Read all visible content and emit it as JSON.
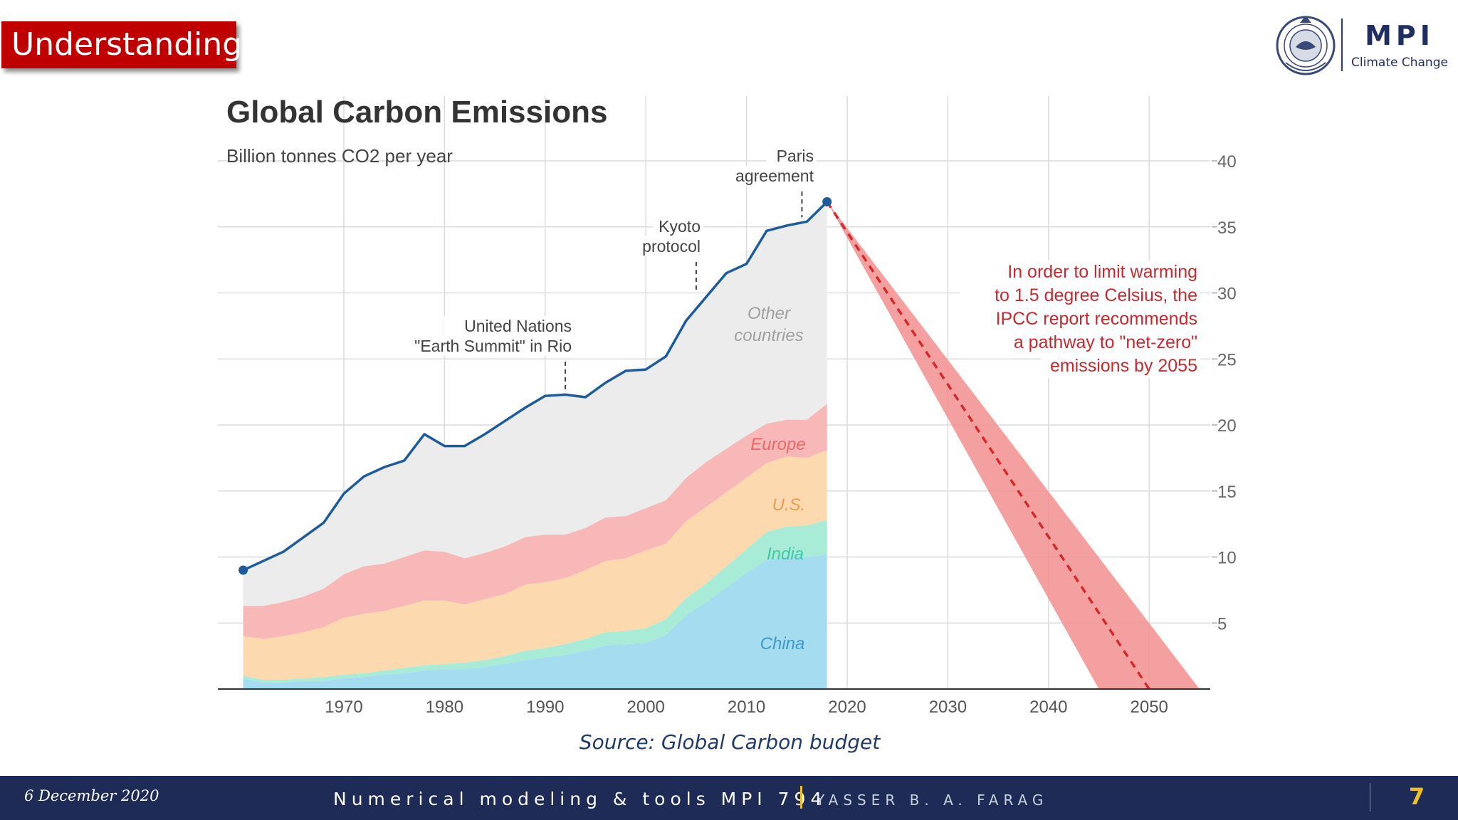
{
  "slide": {
    "badge": "Understanding",
    "source": "Source: Global Carbon budget",
    "logo": {
      "name": "MPI",
      "subtitle": "Climate Change",
      "seal_icon": "institution-seal-icon"
    },
    "footer": {
      "date": "6 December 2020",
      "course": "Numerical modeling & tools  MPI 794",
      "author": "YASSER B. A. FARAG",
      "page": "7"
    }
  },
  "chart_data": {
    "type": "area",
    "title": "Global Carbon Emissions",
    "ylabel": "Billion tonnes CO2 per year",
    "xlabel": "",
    "xlim": [
      1959,
      2056
    ],
    "ylim": [
      0,
      40
    ],
    "x_ticks": [
      1970,
      1980,
      1990,
      2000,
      2010,
      2020,
      2030,
      2040,
      2050
    ],
    "y_ticks": [
      5,
      10,
      15,
      20,
      25,
      30,
      35,
      40
    ],
    "grid": true,
    "stacked": true,
    "x": [
      1960,
      1962,
      1964,
      1966,
      1968,
      1970,
      1972,
      1974,
      1976,
      1978,
      1980,
      1982,
      1984,
      1986,
      1988,
      1990,
      1992,
      1994,
      1996,
      1998,
      2000,
      2002,
      2004,
      2006,
      2008,
      2010,
      2012,
      2014,
      2016,
      2018
    ],
    "series": [
      {
        "name": "China",
        "color": "#a6dcf0",
        "values": [
          0.8,
          0.5,
          0.5,
          0.6,
          0.6,
          0.8,
          0.9,
          1.1,
          1.2,
          1.4,
          1.5,
          1.5,
          1.7,
          1.9,
          2.2,
          2.4,
          2.6,
          2.9,
          3.3,
          3.4,
          3.5,
          4.1,
          5.6,
          6.6,
          7.7,
          8.8,
          9.8,
          10.0,
          10.0,
          10.2
        ]
      },
      {
        "name": "India",
        "color": "#a8ecd8",
        "values": [
          0.2,
          0.2,
          0.2,
          0.2,
          0.3,
          0.3,
          0.3,
          0.3,
          0.4,
          0.4,
          0.4,
          0.5,
          0.5,
          0.6,
          0.7,
          0.7,
          0.8,
          0.9,
          1.0,
          1.0,
          1.1,
          1.2,
          1.3,
          1.4,
          1.6,
          1.8,
          2.1,
          2.3,
          2.4,
          2.6
        ]
      },
      {
        "name": "U.S.",
        "color": "#fcd9ae",
        "values": [
          3.0,
          3.1,
          3.3,
          3.5,
          3.8,
          4.3,
          4.5,
          4.5,
          4.7,
          4.9,
          4.8,
          4.4,
          4.6,
          4.7,
          5.0,
          5.0,
          5.0,
          5.2,
          5.4,
          5.5,
          5.9,
          5.7,
          5.8,
          5.8,
          5.6,
          5.4,
          5.2,
          5.3,
          5.1,
          5.3
        ]
      },
      {
        "name": "Europe",
        "color": "#f8b8b8",
        "values": [
          2.3,
          2.5,
          2.6,
          2.7,
          2.9,
          3.3,
          3.6,
          3.6,
          3.7,
          3.8,
          3.7,
          3.5,
          3.5,
          3.6,
          3.6,
          3.6,
          3.3,
          3.2,
          3.3,
          3.2,
          3.2,
          3.3,
          3.3,
          3.4,
          3.3,
          3.2,
          3.0,
          2.8,
          2.9,
          3.5
        ]
      },
      {
        "name": "Other countries",
        "color": "#ececec",
        "values": [
          2.7,
          3.4,
          3.8,
          4.5,
          5.0,
          6.1,
          6.8,
          7.3,
          7.3,
          8.8,
          8.0,
          8.5,
          9.0,
          9.5,
          9.8,
          10.5,
          10.6,
          9.9,
          10.2,
          11.0,
          10.5,
          10.9,
          11.9,
          12.5,
          13.3,
          13.0,
          14.6,
          14.7,
          15.0,
          15.3
        ]
      }
    ],
    "total_line": {
      "color": "#1e5b9a",
      "values": [
        9.0,
        9.7,
        10.4,
        11.5,
        12.6,
        14.8,
        16.1,
        16.8,
        17.3,
        19.3,
        18.4,
        18.4,
        19.3,
        20.3,
        21.3,
        22.2,
        22.3,
        22.1,
        23.2,
        24.1,
        24.2,
        25.2,
        27.9,
        29.7,
        31.5,
        32.2,
        34.7,
        35.1,
        35.4,
        36.9
      ]
    },
    "projection": {
      "color": "#d42a2a",
      "band_color": "#f28f8f",
      "line": [
        [
          2018,
          36.9
        ],
        [
          2050,
          0
        ]
      ],
      "band": [
        [
          2018,
          36.9
        ],
        [
          2055,
          0
        ],
        [
          2045,
          0
        ]
      ]
    },
    "annotations": [
      {
        "x": 1992,
        "y": 22.3,
        "lines": [
          "United Nations",
          "\"Earth Summit\" in Rio"
        ]
      },
      {
        "x": 2005,
        "y": 29.7,
        "lines": [
          "Kyoto",
          "protocol"
        ]
      },
      {
        "x": 2016,
        "y": 35.4,
        "lines": [
          "Paris",
          "agreement"
        ]
      }
    ],
    "series_labels": [
      {
        "series": "Other countries",
        "lines": [
          "Other",
          "countries"
        ]
      },
      {
        "series": "Europe",
        "lines": [
          "Europe"
        ]
      },
      {
        "series": "U.S.",
        "lines": [
          "U.S."
        ]
      },
      {
        "series": "India",
        "lines": [
          "India"
        ]
      },
      {
        "series": "China",
        "lines": [
          "China"
        ]
      }
    ],
    "callout": {
      "lines": [
        "In order to limit warming",
        "to 1.5 degree Celsius, the",
        "IPCC report recommends",
        "a pathway to \"net-zero\"",
        "emissions by 2055"
      ],
      "color": "#c8282e"
    }
  }
}
